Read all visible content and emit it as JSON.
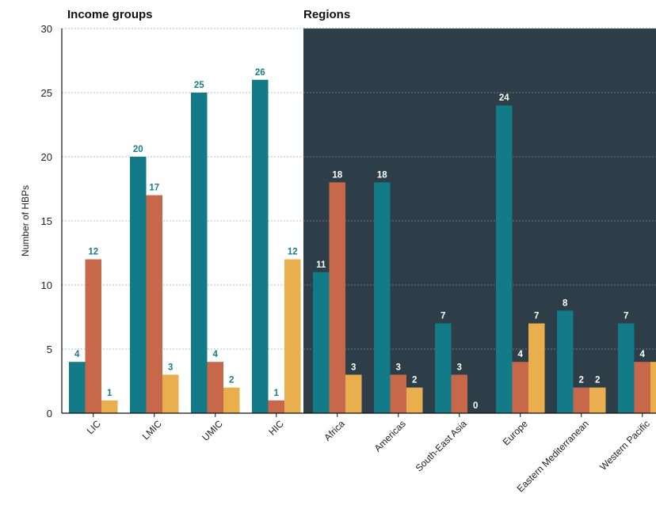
{
  "chart_data": {
    "type": "bar",
    "ylabel": "Number of HBPs",
    "ylim": [
      0,
      30
    ],
    "yticks": [
      0,
      5,
      10,
      15,
      20,
      25,
      30
    ],
    "grid": "horizontal dashed",
    "groups": [
      {
        "title": "Income groups",
        "background": "#ffffff",
        "label_color": "#1a7c8a",
        "categories": [
          "LIC",
          "LMIC",
          "UMIC",
          "HIC"
        ],
        "values": [
          [
            4,
            12,
            1
          ],
          [
            20,
            17,
            3
          ],
          [
            25,
            4,
            2
          ],
          [
            26,
            1,
            12
          ]
        ]
      },
      {
        "title": "Regions",
        "background": "#2e3e48",
        "label_color": "#ffffff",
        "categories": [
          "Africa",
          "Americas",
          "South-East Asia",
          "Europe",
          "Eastern Mediterranean",
          "Western Pacific"
        ],
        "values": [
          [
            11,
            18,
            3
          ],
          [
            18,
            3,
            2
          ],
          [
            7,
            3,
            0
          ],
          [
            24,
            4,
            7
          ],
          [
            8,
            2,
            2
          ],
          [
            7,
            4,
            4
          ]
        ]
      }
    ],
    "series_colors": [
      "#137b87",
      "#c8684a",
      "#e9ae4e"
    ]
  }
}
